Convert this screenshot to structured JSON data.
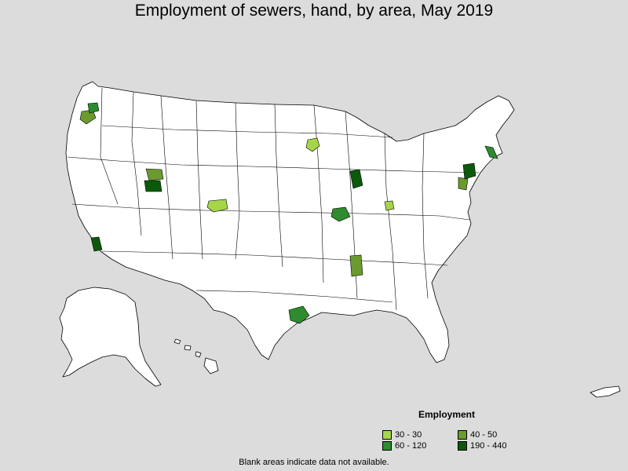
{
  "title": "Employment of sewers, hand, by area, May 2019",
  "legend": {
    "title": "Employment",
    "items": [
      {
        "label": "30 - 30",
        "color": "#a6d54a"
      },
      {
        "label": "40 - 50",
        "color": "#6b9a2e"
      },
      {
        "label": "60 - 120",
        "color": "#2e8b2e"
      },
      {
        "label": "190 - 440",
        "color": "#0b5a0b"
      }
    ]
  },
  "footnote": "Blank areas indicate data not available."
}
